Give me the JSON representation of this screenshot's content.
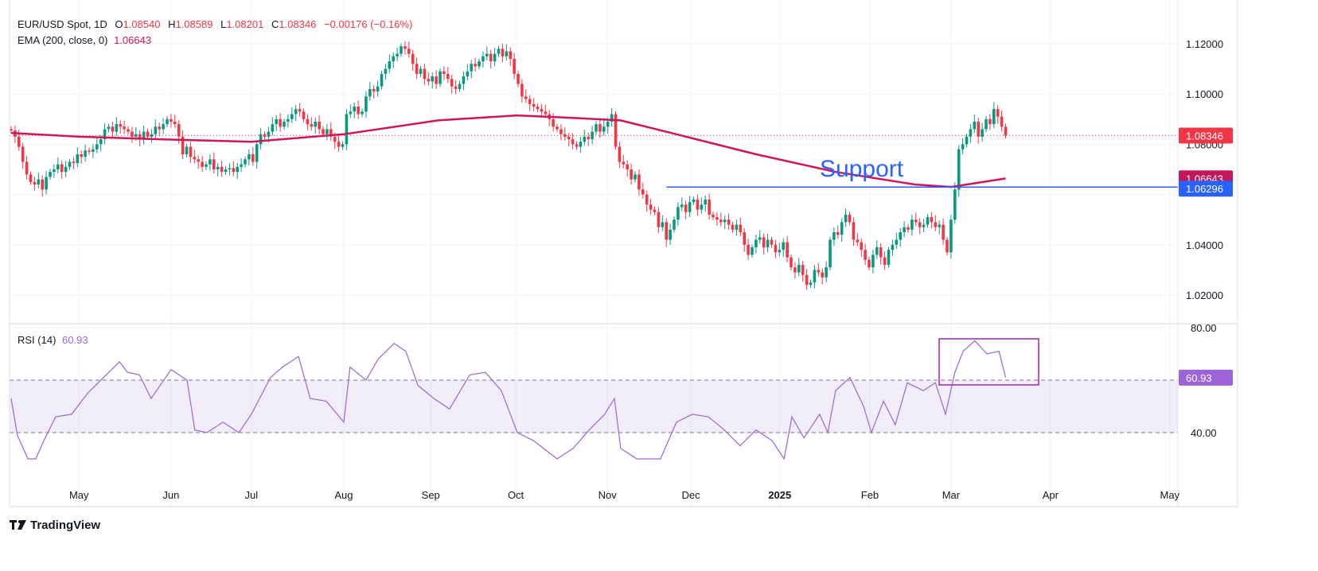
{
  "header": {
    "symbol": "EUR/USD Spot, 1D",
    "o_label": "O",
    "o": "1.08540",
    "h_label": "H",
    "h": "1.08589",
    "l_label": "L",
    "l": "1.08201",
    "c_label": "C",
    "c": "1.08346",
    "change": "−0.00176 (−0.16%)",
    "ema_label": "EMA (200, close, 0)",
    "ema_value": "1.06643",
    "rsi_label": "RSI (14)",
    "rsi_value": "60.93"
  },
  "branding": {
    "logo_text": "TradingView"
  },
  "colors": {
    "up": "#089981",
    "down": "#f23645",
    "ema": "#d0155a",
    "rsi": "#9c64d8",
    "support": "#2962ff",
    "box": "#9c27b0"
  },
  "chart_data": {
    "type": "candlestick",
    "title": "EUR/USD Spot, 1D",
    "price_axis": {
      "ticks": [
        "1.12000",
        "1.10000",
        "1.08000",
        "1.04000",
        "1.02000"
      ],
      "tick_values": [
        1.12,
        1.1,
        1.08,
        1.04,
        1.02
      ],
      "range": [
        1.006,
        1.129
      ]
    },
    "time_axis": {
      "labels": [
        "May",
        "Jun",
        "Jul",
        "Aug",
        "Sep",
        "Oct",
        "Nov",
        "Dec",
        "2025",
        "Feb",
        "Mar",
        "Apr",
        "May"
      ],
      "label_candle_index": [
        17.4,
        41,
        61.6,
        85.3,
        107.6,
        129.4,
        152.9,
        174.3,
        197.1,
        220.2,
        241,
        266.5,
        297.1
      ],
      "bold": [
        "2025"
      ]
    },
    "last_price": {
      "value": 1.08346,
      "label": "1.08346"
    },
    "ema_price": {
      "value": 1.06643,
      "label": "1.06643"
    },
    "support": {
      "value": 1.06296,
      "label": "1.06296",
      "text": "Support",
      "from_candle_index": 168
    },
    "closes": [
      1.0855,
      1.083,
      1.079,
      1.073,
      1.068,
      1.065,
      1.064,
      1.066,
      1.062,
      1.067,
      1.069,
      1.07,
      1.072,
      1.069,
      1.071,
      1.073,
      1.0725,
      1.076,
      1.075,
      1.0775,
      1.077,
      1.078,
      1.08,
      1.082,
      1.086,
      1.087,
      1.085,
      1.088,
      1.087,
      1.086,
      1.085,
      1.083,
      1.084,
      1.082,
      1.085,
      1.083,
      1.084,
      1.087,
      1.086,
      1.088,
      1.09,
      1.089,
      1.088,
      1.083,
      1.076,
      1.079,
      1.075,
      1.074,
      1.073,
      1.071,
      1.072,
      1.074,
      1.07,
      1.071,
      1.069,
      1.07,
      1.0705,
      1.069,
      1.071,
      1.072,
      1.074,
      1.076,
      1.073,
      1.08,
      1.084,
      1.083,
      1.085,
      1.088,
      1.09,
      1.087,
      1.089,
      1.09,
      1.092,
      1.094,
      1.093,
      1.09,
      1.088,
      1.087,
      1.089,
      1.086,
      1.084,
      1.086,
      1.083,
      1.081,
      1.079,
      1.08,
      1.092,
      1.093,
      1.095,
      1.092,
      1.093,
      1.099,
      1.102,
      1.101,
      1.103,
      1.108,
      1.11,
      1.113,
      1.115,
      1.116,
      1.119,
      1.118,
      1.116,
      1.112,
      1.108,
      1.11,
      1.106,
      1.105,
      1.107,
      1.104,
      1.109,
      1.108,
      1.106,
      1.103,
      1.102,
      1.104,
      1.107,
      1.109,
      1.112,
      1.111,
      1.113,
      1.115,
      1.116,
      1.113,
      1.116,
      1.118,
      1.115,
      1.117,
      1.114,
      1.108,
      1.104,
      1.099,
      1.098,
      1.096,
      1.095,
      1.094,
      1.093,
      1.092,
      1.09,
      1.087,
      1.086,
      1.084,
      1.083,
      1.082,
      1.08,
      1.079,
      1.081,
      1.083,
      1.082,
      1.085,
      1.088,
      1.085,
      1.087,
      1.089,
      1.092,
      1.079,
      1.073,
      1.072,
      1.07,
      1.066,
      1.068,
      1.062,
      1.06,
      1.056,
      1.054,
      1.053,
      1.047,
      1.049,
      1.042,
      1.046,
      1.05,
      1.055,
      1.056,
      1.053,
      1.057,
      1.058,
      1.054,
      1.056,
      1.058,
      1.052,
      1.051,
      1.05,
      1.049,
      1.05,
      1.048,
      1.046,
      1.048,
      1.045,
      1.04,
      1.036,
      1.039,
      1.042,
      1.043,
      1.039,
      1.042,
      1.04,
      1.037,
      1.038,
      1.041,
      1.035,
      1.031,
      1.029,
      1.032,
      1.028,
      1.024,
      1.025,
      1.03,
      1.029,
      1.027,
      1.031,
      1.042,
      1.045,
      1.044,
      1.049,
      1.052,
      1.049,
      1.042,
      1.041,
      1.038,
      1.034,
      1.031,
      1.036,
      1.039,
      1.035,
      1.032,
      1.038,
      1.04,
      1.042,
      1.045,
      1.047,
      1.046,
      1.05,
      1.049,
      1.047,
      1.048,
      1.051,
      1.049,
      1.047,
      1.048,
      1.042,
      1.037,
      1.05,
      1.062,
      1.078,
      1.08,
      1.083,
      1.086,
      1.089,
      1.083,
      1.086,
      1.09,
      1.088,
      1.094,
      1.091,
      1.087,
      1.0835
    ],
    "ema": [
      [
        0,
        1.0845
      ],
      [
        17.6,
        1.083
      ],
      [
        38,
        1.082
      ],
      [
        61.6,
        1.081
      ],
      [
        85.3,
        1.084
      ],
      [
        109.4,
        1.0895
      ],
      [
        129.8,
        1.0915
      ],
      [
        144,
        1.0905
      ],
      [
        156.3,
        1.0895
      ],
      [
        170.6,
        1.084
      ],
      [
        191,
        1.076
      ],
      [
        211.4,
        1.069
      ],
      [
        231.8,
        1.064
      ],
      [
        241,
        1.063
      ],
      [
        255,
        1.0664
      ]
    ],
    "rsi_axis": {
      "ticks": [
        "80.00",
        "40.00"
      ],
      "tick_values": [
        80,
        40
      ],
      "bands": [
        40,
        60
      ],
      "range": [
        21,
        84
      ]
    },
    "rsi": [
      [
        0,
        53
      ],
      [
        1.6,
        39
      ],
      [
        4.3,
        30
      ],
      [
        6.3,
        30
      ],
      [
        8.4,
        37
      ],
      [
        11.4,
        46
      ],
      [
        15.5,
        47
      ],
      [
        19.6,
        55
      ],
      [
        23.7,
        61
      ],
      [
        27.8,
        67
      ],
      [
        29.8,
        63
      ],
      [
        32.9,
        62
      ],
      [
        35.9,
        53
      ],
      [
        41,
        64
      ],
      [
        45.1,
        60
      ],
      [
        47.1,
        41
      ],
      [
        50.2,
        40
      ],
      [
        54.3,
        44
      ],
      [
        58.4,
        40
      ],
      [
        61.6,
        47
      ],
      [
        66.5,
        61
      ],
      [
        69.6,
        65
      ],
      [
        73.7,
        69
      ],
      [
        76.7,
        53
      ],
      [
        80.8,
        52
      ],
      [
        85.3,
        44
      ],
      [
        86.9,
        65
      ],
      [
        91,
        60
      ],
      [
        94.1,
        68
      ],
      [
        98.2,
        74
      ],
      [
        101.2,
        71
      ],
      [
        104.3,
        58
      ],
      [
        108.4,
        53
      ],
      [
        112.4,
        49
      ],
      [
        117.6,
        62
      ],
      [
        121.6,
        63
      ],
      [
        125.7,
        56
      ],
      [
        129.8,
        40
      ],
      [
        133.9,
        37
      ],
      [
        140,
        30
      ],
      [
        144.1,
        34
      ],
      [
        148.2,
        41
      ],
      [
        152.2,
        47
      ],
      [
        154.7,
        53
      ],
      [
        156.3,
        34
      ],
      [
        160.4,
        30
      ],
      [
        166.5,
        30
      ],
      [
        170.6,
        44
      ],
      [
        174.7,
        47
      ],
      [
        178.8,
        46
      ],
      [
        182.9,
        41
      ],
      [
        186.9,
        35
      ],
      [
        191,
        41
      ],
      [
        195.1,
        37
      ],
      [
        198.2,
        30
      ],
      [
        200.2,
        46
      ],
      [
        203.3,
        38
      ],
      [
        207.3,
        47
      ],
      [
        209.4,
        40
      ],
      [
        211.4,
        56
      ],
      [
        215.1,
        61
      ],
      [
        218.6,
        50
      ],
      [
        220.6,
        40
      ],
      [
        223.7,
        52
      ],
      [
        226.7,
        43
      ],
      [
        229.8,
        59
      ],
      [
        233.9,
        56
      ],
      [
        237,
        59
      ],
      [
        239.6,
        47
      ],
      [
        242,
        63
      ],
      [
        244.1,
        71
      ],
      [
        247.1,
        75
      ],
      [
        250.2,
        70
      ],
      [
        253.3,
        71
      ],
      [
        255,
        61
      ]
    ],
    "last_rsi": {
      "value": 60.93,
      "label": "60.93"
    }
  }
}
